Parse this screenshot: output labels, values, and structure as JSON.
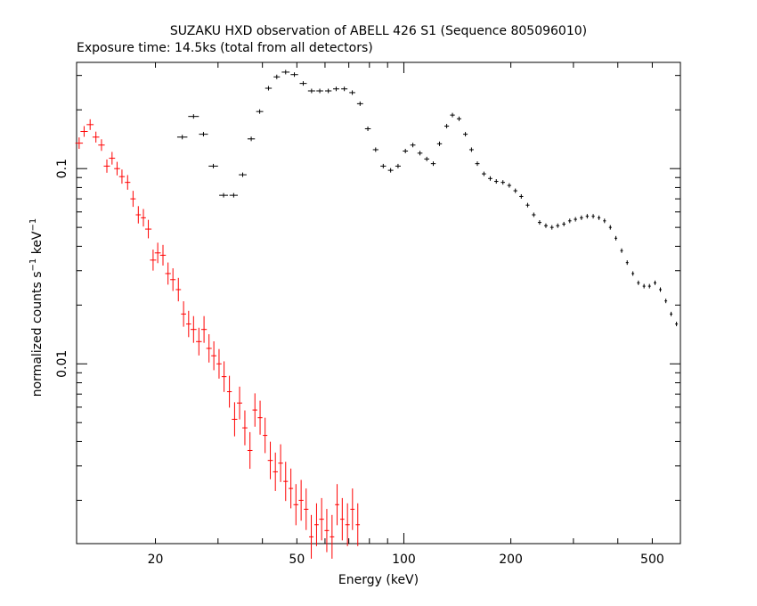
{
  "chart_data": {
    "type": "scatter",
    "title": "SUZAKU HXD observation of ABELL 426 S1 (Sequence 805096010)",
    "subtitle": "Exposure time: 14.5ks (total from all detectors)",
    "xlabel": "Energy (keV)",
    "ylabel": {
      "base": "normalized counts s",
      "sup1": "−1",
      "mid": " keV",
      "sup2": "−1"
    },
    "x_scale": "log",
    "y_scale": "log",
    "xlim": [
      12,
      600
    ],
    "ylim": [
      0.0012,
      0.35
    ],
    "x_ticks": [
      {
        "value": 20,
        "label": "20"
      },
      {
        "value": 50,
        "label": "50"
      },
      {
        "value": 100,
        "label": "100"
      },
      {
        "value": 200,
        "label": "200"
      },
      {
        "value": 500,
        "label": "500"
      }
    ],
    "y_ticks": [
      {
        "value": 0.01,
        "label": "0.01"
      },
      {
        "value": 0.1,
        "label": "0.1"
      }
    ],
    "grid": false,
    "legend": "none",
    "series": [
      {
        "color": "#000000",
        "points": [
          [
            23.8,
            0.145,
            0.8
          ],
          [
            25.6,
            0.185,
            0.9
          ],
          [
            27.3,
            0.15,
            0.8
          ],
          [
            29.1,
            0.103,
            0.9
          ],
          [
            31.1,
            0.073,
            0.9
          ],
          [
            33.2,
            0.073,
            0.9
          ],
          [
            35.2,
            0.093,
            0.9
          ],
          [
            37.2,
            0.142,
            0.9
          ],
          [
            39.3,
            0.196,
            0.9
          ],
          [
            41.6,
            0.258,
            0.9
          ],
          [
            43.9,
            0.295,
            0.9
          ],
          [
            46.5,
            0.312,
            1.2
          ],
          [
            49.2,
            0.303,
            1.2
          ],
          [
            52.1,
            0.273,
            1.2
          ],
          [
            55.0,
            0.25,
            1.3
          ],
          [
            58.0,
            0.25,
            1.3
          ],
          [
            61.3,
            0.25,
            1.3
          ],
          [
            64.5,
            0.256,
            1.3
          ],
          [
            68.0,
            0.256,
            1.4
          ],
          [
            71.6,
            0.245,
            1.4
          ],
          [
            75.3,
            0.215,
            1.5
          ],
          [
            79.2,
            0.16,
            1.5
          ],
          [
            83.3,
            0.125,
            1.5
          ],
          [
            87.5,
            0.103,
            1.6
          ],
          [
            91.8,
            0.098,
            1.6
          ],
          [
            96.3,
            0.103,
            1.7
          ],
          [
            101,
            0.123,
            1.7
          ],
          [
            106,
            0.132,
            1.8
          ],
          [
            111,
            0.12,
            1.8
          ],
          [
            116,
            0.112,
            1.9
          ],
          [
            121,
            0.106,
            1.9
          ],
          [
            126,
            0.134,
            2.0
          ],
          [
            132,
            0.165,
            2.0
          ],
          [
            137,
            0.188,
            2.1
          ],
          [
            143,
            0.18,
            2.1
          ],
          [
            149,
            0.15,
            2.2
          ],
          [
            155,
            0.125,
            2.2
          ],
          [
            161,
            0.106,
            2.3
          ],
          [
            168,
            0.094,
            2.3
          ],
          [
            175,
            0.089,
            2.4
          ],
          [
            182,
            0.086,
            2.4
          ],
          [
            190,
            0.085,
            2.5
          ],
          [
            198,
            0.082,
            2.5
          ],
          [
            206,
            0.077,
            2.6
          ],
          [
            214,
            0.072,
            2.7
          ],
          [
            223,
            0.065,
            2.7
          ],
          [
            232,
            0.058,
            2.8
          ],
          [
            241,
            0.053,
            2.8
          ],
          [
            251,
            0.051,
            2.9
          ],
          [
            261,
            0.05,
            2.9
          ],
          [
            271,
            0.051,
            3.0
          ],
          [
            282,
            0.052,
            3.0
          ],
          [
            293,
            0.054,
            3.1
          ],
          [
            304,
            0.055,
            3.1
          ],
          [
            316,
            0.056,
            3.2
          ],
          [
            328,
            0.057,
            3.2
          ],
          [
            341,
            0.057,
            3.3
          ],
          [
            354,
            0.056,
            3.3
          ],
          [
            367,
            0.054,
            3.4
          ],
          [
            381,
            0.05,
            3.4
          ],
          [
            395,
            0.044,
            3.5
          ],
          [
            410,
            0.038,
            3.5
          ],
          [
            425,
            0.033,
            3.6
          ],
          [
            441,
            0.029,
            3.6
          ],
          [
            457,
            0.026,
            3.7
          ],
          [
            474,
            0.025,
            3.7
          ],
          [
            491,
            0.025,
            3.8
          ],
          [
            509,
            0.026,
            3.8
          ],
          [
            527,
            0.024,
            3.9
          ],
          [
            546,
            0.021,
            3.9
          ],
          [
            565,
            0.018,
            4.0
          ],
          [
            585,
            0.016,
            4.0
          ]
        ]
      },
      {
        "color": "#ff0000",
        "points": [
          [
            12.2,
            0.135,
            0.3
          ],
          [
            12.6,
            0.155,
            0.3
          ],
          [
            13.1,
            0.168,
            0.3
          ],
          [
            13.6,
            0.145,
            0.3
          ],
          [
            14.1,
            0.132,
            0.3
          ],
          [
            14.6,
            0.103,
            0.3
          ],
          [
            15.1,
            0.113,
            0.3
          ],
          [
            15.6,
            0.1,
            0.3
          ],
          [
            16.1,
            0.091,
            0.3
          ],
          [
            16.7,
            0.085,
            0.3
          ],
          [
            17.3,
            0.07,
            0.3
          ],
          [
            17.9,
            0.058,
            0.3
          ],
          [
            18.5,
            0.056,
            0.3
          ],
          [
            19.1,
            0.049,
            0.4
          ],
          [
            19.7,
            0.034,
            0.4
          ],
          [
            20.3,
            0.037,
            0.4
          ],
          [
            21.0,
            0.036,
            0.4
          ],
          [
            21.7,
            0.029,
            0.4
          ],
          [
            22.4,
            0.027,
            0.4
          ],
          [
            23.2,
            0.024,
            0.4
          ],
          [
            24.0,
            0.018,
            0.4
          ],
          [
            24.8,
            0.016,
            0.4
          ],
          [
            25.6,
            0.015,
            0.5
          ],
          [
            26.5,
            0.013,
            0.5
          ],
          [
            27.4,
            0.015,
            0.5
          ],
          [
            28.3,
            0.012,
            0.5
          ],
          [
            29.2,
            0.011,
            0.5
          ],
          [
            30.2,
            0.01,
            0.5
          ],
          [
            31.2,
            0.0086,
            0.5
          ],
          [
            32.3,
            0.0072,
            0.5
          ],
          [
            33.4,
            0.0052,
            0.6
          ],
          [
            34.5,
            0.0063,
            0.6
          ],
          [
            35.7,
            0.0047,
            0.6
          ],
          [
            36.9,
            0.0036,
            0.6
          ],
          [
            38.1,
            0.0058,
            0.6
          ],
          [
            39.4,
            0.0053,
            0.6
          ],
          [
            40.7,
            0.0043,
            0.6
          ],
          [
            42.1,
            0.0032,
            0.7
          ],
          [
            43.5,
            0.0028,
            0.7
          ],
          [
            45.0,
            0.0031,
            0.7
          ],
          [
            46.5,
            0.0025,
            0.7
          ],
          [
            48.1,
            0.0023,
            0.7
          ],
          [
            49.7,
            0.0019,
            0.8
          ],
          [
            51.4,
            0.002,
            0.8
          ],
          [
            53.1,
            0.0018,
            0.8
          ],
          [
            54.9,
            0.0013,
            0.8
          ],
          [
            56.8,
            0.0015,
            0.8
          ],
          [
            58.7,
            0.0016,
            0.9
          ],
          [
            60.7,
            0.0014,
            0.9
          ],
          [
            62.8,
            0.0013,
            0.9
          ],
          [
            64.9,
            0.0019,
            0.9
          ],
          [
            67.1,
            0.0016,
            0.9
          ],
          [
            69.4,
            0.0015,
            1.0
          ],
          [
            71.7,
            0.0018,
            1.0
          ],
          [
            74.2,
            0.0015,
            1.0
          ]
        ]
      }
    ]
  }
}
